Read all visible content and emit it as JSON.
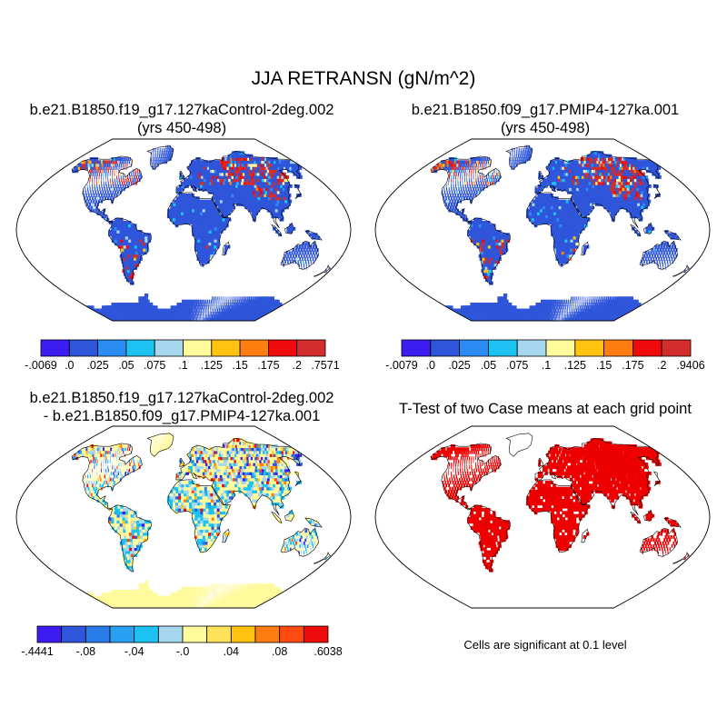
{
  "title": "JJA RETRANSN (gN/m^2)",
  "colors": {
    "palette": [
      "#3d1cf2",
      "#2e55da",
      "#2a8cf2",
      "#1cc3f2",
      "#a6d7ee",
      "#fffa9c",
      "#ffc20e",
      "#ff7c10",
      "#ef0b0b",
      "#d22c2c"
    ],
    "map_background": "#ffffff",
    "outline": "#000000",
    "ttest_fill": "#ee0000"
  },
  "panels": [
    {
      "id": "case1",
      "title_lines": [
        "b.e21.B1850.f19_g17.127kaControl-2deg.002",
        "(yrs 450-498)"
      ],
      "colorbar_labels": [
        "-.0069",
        ".0",
        ".025",
        ".05",
        ".075",
        ".1",
        ".125",
        ".15",
        ".175",
        ".2",
        ".7571"
      ]
    },
    {
      "id": "case2",
      "title_lines": [
        "b.e21.B1850.f09_g17.PMIP4-127ka.001",
        "(yrs 450-498)"
      ],
      "colorbar_labels": [
        "-.0079",
        ".0",
        ".025",
        ".05",
        ".075",
        ".1",
        ".125",
        ".15",
        ".175",
        ".2",
        ".9406"
      ]
    },
    {
      "id": "difference",
      "title_lines": [
        "b.e21.B1850.f19_g17.127kaControl-2deg.002",
        "- b.e21.B1850.f09_g17.PMIP4-127ka.001"
      ],
      "colorbar_labels": [
        "-.4441",
        "",
        "-.08",
        "",
        "-.04",
        "",
        "-.0",
        "",
        ".04",
        "",
        ".08",
        "",
        ".6038"
      ]
    },
    {
      "id": "ttest",
      "title_lines": [
        "T-Test of two Case means at each grid point"
      ],
      "note": "Cells are significant at 0.1 level"
    }
  ],
  "chart_data": [
    {
      "type": "heatmap",
      "title": "b.e21.B1850.f19_g17.127kaControl-2deg.002 (yrs 450-498)",
      "variable": "JJA RETRANSN",
      "units": "gN/m^2",
      "projection": "Robinson",
      "color_levels": [
        -0.0069,
        0.0,
        0.025,
        0.05,
        0.075,
        0.1,
        0.125,
        0.15,
        0.175,
        0.2,
        0.7571
      ],
      "range": [
        -0.0069,
        0.7571
      ]
    },
    {
      "type": "heatmap",
      "title": "b.e21.B1850.f09_g17.PMIP4-127ka.001 (yrs 450-498)",
      "variable": "JJA RETRANSN",
      "units": "gN/m^2",
      "projection": "Robinson",
      "color_levels": [
        -0.0079,
        0.0,
        0.025,
        0.05,
        0.075,
        0.1,
        0.125,
        0.15,
        0.175,
        0.2,
        0.9406
      ],
      "range": [
        -0.0079,
        0.9406
      ]
    },
    {
      "type": "heatmap",
      "title": "b.e21.B1850.f19_g17.127kaControl-2deg.002 - b.e21.B1850.f09_g17.PMIP4-127ka.001",
      "variable": "JJA RETRANSN difference",
      "units": "gN/m^2",
      "projection": "Robinson",
      "color_levels": [
        -0.4441,
        -0.1,
        -0.08,
        -0.06,
        -0.04,
        -0.02,
        0.0,
        0.02,
        0.04,
        0.06,
        0.08,
        0.1,
        0.6038
      ],
      "range": [
        -0.4441,
        0.6038
      ]
    },
    {
      "type": "heatmap",
      "title": "T-Test of two Case means at each grid point",
      "projection": "Robinson",
      "significance_level": 0.1,
      "note": "Cells are significant at 0.1 level"
    }
  ]
}
